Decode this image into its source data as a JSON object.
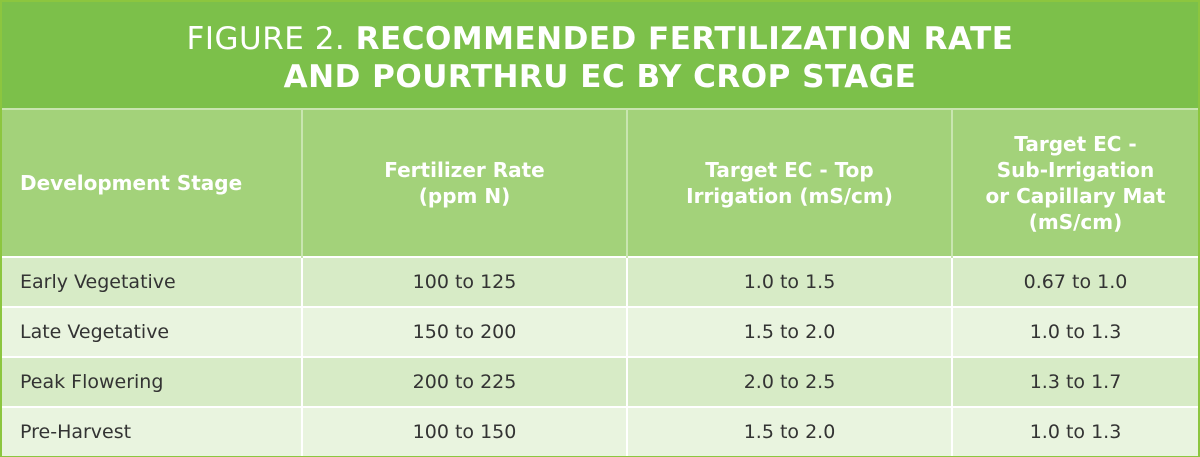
{
  "title": {
    "prefix": "FIGURE 2.",
    "line1": "RECOMMENDED FERTILIZATION RATE",
    "line2": "AND POURTHRU EC BY CROP STAGE"
  },
  "table": {
    "headers": [
      [
        "Development Stage"
      ],
      [
        "Fertilizer Rate",
        "(ppm N)"
      ],
      [
        "Target EC - Top",
        "Irrigation (mS/cm)"
      ],
      [
        "Target EC -",
        "Sub-Irrigation",
        "or Capillary Mat",
        "(mS/cm)"
      ]
    ],
    "rows": [
      [
        "Early Vegetative",
        "100 to 125",
        "1.0 to 1.5",
        "0.67 to 1.0"
      ],
      [
        "Late Vegetative",
        "150 to 200",
        "1.5 to 2.0",
        "1.0 to 1.3"
      ],
      [
        "Peak Flowering",
        "200 to 225",
        "2.0 to 2.5",
        "1.3 to 1.7"
      ],
      [
        "Pre-Harvest",
        "100 to 150",
        "1.5 to 2.0",
        "1.0 to 1.3"
      ]
    ]
  },
  "colors": {
    "title_bg": "#7cc04a",
    "header_bg": "#a3d27a",
    "row_odd": "#d7ebc6",
    "row_even": "#e9f4df",
    "border": "#8cc63f"
  }
}
